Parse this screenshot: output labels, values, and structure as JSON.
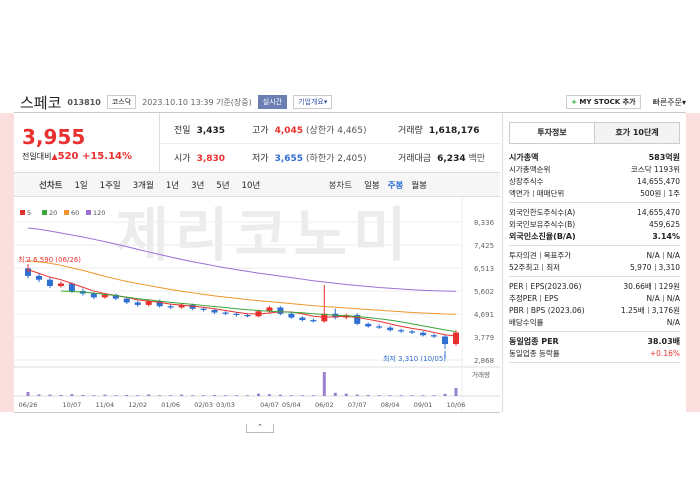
{
  "header": {
    "name": "스페코",
    "code": "013810",
    "market": "코스닥",
    "timestamp": "2023.10.10 13:39 기준(장중)",
    "realtime": "실시간",
    "overview": "기업개요",
    "my_stock": "MY STOCK 추가",
    "quick_order": "빠른주문"
  },
  "quote": {
    "price": "3,955",
    "change_label": "전일대비",
    "change": "520",
    "change_pct": "+15.14%"
  },
  "stats": [
    [
      {
        "label": "전일",
        "value": "3,435",
        "tone": "flat"
      },
      {
        "label": "고가",
        "value": "4,045",
        "note": "(상한가 4,465)",
        "tone": "up"
      },
      {
        "label": "거래량",
        "value": "1,618,176",
        "tone": "flat"
      }
    ],
    [
      {
        "label": "시가",
        "value": "3,830",
        "tone": "up"
      },
      {
        "label": "저가",
        "value": "3,655",
        "note": "(하한가 2,405)",
        "tone": "down"
      },
      {
        "label": "거래대금",
        "value": "6,234",
        "note": "백만",
        "tone": "flat"
      }
    ]
  ],
  "tabs": {
    "line": "선차트",
    "periods": [
      "1일",
      "1주일",
      "3개월",
      "1년",
      "3년",
      "5년",
      "10년"
    ],
    "candle": "봉차트",
    "candle_periods": [
      "일봉",
      "주봉",
      "월봉"
    ],
    "candle_active": 1
  },
  "chart_data": {
    "type": "candlestick",
    "categories": [
      "06/26",
      null,
      null,
      null,
      "10/07",
      null,
      null,
      "11/04",
      null,
      null,
      "12/02",
      null,
      null,
      "01/06",
      null,
      null,
      "02/03",
      null,
      "03/03",
      null,
      null,
      null,
      "04/07",
      null,
      "05/04",
      null,
      null,
      "06/02",
      null,
      null,
      "07/07",
      null,
      null,
      "08/04",
      null,
      null,
      "09/01",
      null,
      null,
      "10/06"
    ],
    "open": [
      6500,
      6200,
      6050,
      5800,
      5900,
      5600,
      5500,
      5350,
      5450,
      5300,
      5150,
      5050,
      5200,
      5000,
      4950,
      5050,
      4900,
      4850,
      4750,
      4700,
      4650,
      4600,
      4800,
      4950,
      4700,
      4550,
      4450,
      4400,
      4700,
      4550,
      4650,
      4300,
      4200,
      4150,
      4050,
      4000,
      3950,
      3850,
      3800,
      3500
    ],
    "high": [
      6590,
      6300,
      6150,
      5980,
      5950,
      5700,
      5560,
      5520,
      5500,
      5360,
      5220,
      5280,
      5260,
      5080,
      5120,
      5100,
      4960,
      4900,
      4800,
      4760,
      4700,
      4860,
      5020,
      5000,
      4760,
      4600,
      4520,
      5840,
      4900,
      4700,
      4720,
      4360,
      4280,
      4220,
      4110,
      4060,
      4010,
      3920,
      3870,
      4045
    ],
    "low": [
      6100,
      5950,
      5720,
      5740,
      5520,
      5420,
      5280,
      5300,
      5240,
      5080,
      4980,
      4990,
      4940,
      4880,
      4900,
      4840,
      4790,
      4690,
      4640,
      4590,
      4560,
      4560,
      4740,
      4640,
      4500,
      4400,
      4350,
      4350,
      4480,
      4480,
      4250,
      4150,
      4100,
      3990,
      3940,
      3900,
      3800,
      3740,
      3310,
      3440
    ],
    "close": [
      6200,
      6050,
      5800,
      5900,
      5600,
      5500,
      5350,
      5450,
      5300,
      5150,
      5050,
      5200,
      5000,
      4950,
      5050,
      4900,
      4850,
      4750,
      4700,
      4650,
      4600,
      4800,
      4950,
      4700,
      4550,
      4450,
      4400,
      4700,
      4550,
      4650,
      4300,
      4200,
      4150,
      4050,
      4000,
      3950,
      3850,
      3800,
      3500,
      3955
    ],
    "up_color": "#e8312f",
    "down_color": "#2f6fd1",
    "ylim": [
      2868,
      8336
    ],
    "yticks": [
      {
        "value": 8336,
        "label": "8,336"
      },
      {
        "value": 7425,
        "label": "7,425"
      },
      {
        "value": 6513,
        "label": "6,513"
      },
      {
        "value": 5602,
        "label": "5,602"
      },
      {
        "value": 4691,
        "label": "4,691"
      },
      {
        "value": 3779,
        "label": "3,779"
      },
      {
        "value": 2868,
        "label": "2,868"
      }
    ],
    "grid": true,
    "moving_averages": [
      {
        "name": "5",
        "color": "#e8312f",
        "values": [
          6450,
          6300,
          6150,
          6050,
          5900,
          5750,
          5600,
          5500,
          5420,
          5350,
          5250,
          5200,
          5150,
          5080,
          5040,
          5000,
          4960,
          4900,
          4830,
          4760,
          4700,
          4690,
          4730,
          4780,
          4770,
          4700,
          4600,
          4560,
          4580,
          4600,
          4550,
          4480,
          4400,
          4300,
          4200,
          4120,
          4050,
          3960,
          3870,
          3820
        ]
      },
      {
        "name": "20",
        "color": "#3aa53a",
        "values": [
          null,
          null,
          null,
          5600,
          5580,
          5560,
          5520,
          5470,
          5420,
          5360,
          5300,
          5250,
          5200,
          5150,
          5110,
          5070,
          5030,
          4990,
          4950,
          4900,
          4860,
          4830,
          4800,
          4780,
          4760,
          4740,
          4700,
          4670,
          4640,
          4620,
          4590,
          4550,
          4500,
          4450,
          4380,
          4300,
          4220,
          4140,
          4060,
          3990
        ]
      },
      {
        "name": "60",
        "color": "#f0962a",
        "values": [
          6800,
          6760,
          6700,
          6620,
          6520,
          6420,
          6300,
          6180,
          6080,
          5980,
          5900,
          5820,
          5740,
          5660,
          5590,
          5530,
          5470,
          5410,
          5360,
          5310,
          5260,
          5220,
          5180,
          5140,
          5100,
          5060,
          5020,
          4990,
          4960,
          4930,
          4900,
          4870,
          4840,
          4810,
          4780,
          4750,
          4730,
          4710,
          4690,
          4680
        ]
      },
      {
        "name": "120",
        "color": "#9b6fd6",
        "values": [
          8100,
          8050,
          7980,
          7900,
          7820,
          7740,
          7650,
          7560,
          7460,
          7360,
          7250,
          7150,
          7050,
          6950,
          6850,
          6760,
          6680,
          6600,
          6520,
          6450,
          6380,
          6310,
          6250,
          6190,
          6130,
          6070,
          6010,
          5960,
          5910,
          5860,
          5820,
          5780,
          5740,
          5710,
          5680,
          5650,
          5630,
          5610,
          5600,
          5590
        ]
      }
    ],
    "volume": {
      "label": "거래량",
      "color": "#9b7fd0",
      "ylim": [
        0,
        9000000
      ],
      "values": [
        1500000,
        600000,
        500000,
        400000,
        700000,
        400000,
        300000,
        500000,
        300000,
        400000,
        300000,
        600000,
        300000,
        300000,
        500000,
        300000,
        300000,
        400000,
        300000,
        300000,
        300000,
        900000,
        700000,
        500000,
        300000,
        300000,
        300000,
        9000000,
        1200000,
        900000,
        500000,
        400000,
        300000,
        300000,
        300000,
        300000,
        300000,
        300000,
        800000,
        3000000
      ]
    },
    "annotations": {
      "high": "최고 6,590 (06/26)",
      "low": "최저 3,310 (10/05)"
    },
    "watermark": "제리코노미"
  },
  "invest": {
    "tabs": [
      "투자정보",
      "호가 10단계"
    ],
    "sections": [
      [
        {
          "labels": [
            "시가총액"
          ],
          "values": [
            "583억원"
          ],
          "bold": true
        },
        {
          "labels": [
            "시가총액순위"
          ],
          "values": [
            "코스닥 1193위"
          ]
        },
        {
          "labels": [
            "상장주식수"
          ],
          "values": [
            "14,655,470"
          ]
        },
        {
          "labels": [
            "액면가",
            "매매단위"
          ],
          "values": [
            "500원",
            "1주"
          ]
        }
      ],
      [
        {
          "labels": [
            "외국인한도주식수(A)"
          ],
          "values": [
            "14,655,470"
          ]
        },
        {
          "labels": [
            "외국인보유주식수(B)"
          ],
          "values": [
            "459,625"
          ]
        },
        {
          "labels": [
            "외국인소진율(B/A)"
          ],
          "values": [
            "3.14%"
          ],
          "bold": true
        }
      ],
      [
        {
          "labels": [
            "투자의견",
            "목표주가"
          ],
          "values": [
            "N/A",
            "N/A"
          ]
        },
        {
          "labels": [
            "52주최고",
            "최저"
          ],
          "values": [
            "5,970",
            "3,310"
          ]
        }
      ],
      [
        {
          "labels": [
            "PER",
            "EPS(2023.06)"
          ],
          "values": [
            "30.66배",
            "129원"
          ]
        },
        {
          "labels": [
            "추정PER",
            "EPS"
          ],
          "values": [
            "N/A",
            "N/A"
          ]
        },
        {
          "labels": [
            "PBR",
            "BPS (2023.06)"
          ],
          "values": [
            "1.25배",
            "3,176원"
          ]
        },
        {
          "labels": [
            "배당수익률"
          ],
          "values": [
            "N/A"
          ]
        }
      ],
      [
        {
          "labels": [
            "동일업종 PER"
          ],
          "values": [
            "38.03배"
          ],
          "bold": true
        },
        {
          "labels": [
            "동일업종 등락률"
          ],
          "values": [
            "+0.16%"
          ],
          "tone": "up"
        }
      ]
    ]
  }
}
